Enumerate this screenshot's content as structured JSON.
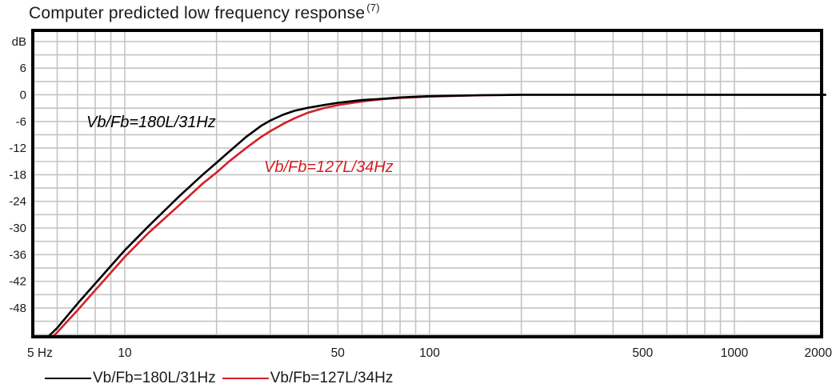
{
  "chart_data": {
    "type": "line",
    "title": "Computer predicted low frequency response",
    "title_superscript": "(7)",
    "xlabel": "Hz",
    "ylabel": "dB",
    "xscale": "log",
    "xlim": [
      5,
      2000
    ],
    "ylim": [
      -54.5,
      14.5
    ],
    "grid": true,
    "x_tick_labels": [
      "5 Hz",
      "10",
      "50",
      "100",
      "500",
      "1000",
      "2000"
    ],
    "x_tick_values": [
      5,
      10,
      50,
      100,
      500,
      1000,
      2000
    ],
    "y_tick_labels": [
      "dB",
      "6",
      "0",
      "-6",
      "-12",
      "-18",
      "-24",
      "-30",
      "-36",
      "-42",
      "-48"
    ],
    "y_tick_values": [
      12,
      6,
      0,
      -6,
      -12,
      -18,
      -24,
      -30,
      -36,
      -42,
      -48
    ],
    "legend_position": "bottom",
    "series": [
      {
        "name": "Vb/Fb=180L/31Hz",
        "color": "#000000",
        "x": [
          5.6,
          6,
          7,
          8,
          10,
          12,
          15,
          18,
          20,
          22,
          25,
          28,
          30,
          33,
          36,
          40,
          45,
          50,
          60,
          70,
          80,
          100,
          150,
          200,
          500,
          1000,
          2000
        ],
        "y": [
          -54.5,
          -52.5,
          -47,
          -42.5,
          -35,
          -29.5,
          -23,
          -18,
          -15.3,
          -12.8,
          -9.5,
          -7,
          -5.8,
          -4.5,
          -3.6,
          -2.9,
          -2.3,
          -1.8,
          -1.2,
          -0.9,
          -0.6,
          -0.3,
          -0.1,
          0,
          0,
          0,
          0
        ]
      },
      {
        "name": "Vb/Fb=127L/34Hz",
        "color": "#d42027",
        "x": [
          5.8,
          6,
          7,
          8,
          10,
          12,
          15,
          18,
          20,
          22,
          25,
          28,
          30,
          33,
          36,
          40,
          45,
          50,
          60,
          70,
          80,
          100,
          150,
          200,
          500,
          1000,
          2000
        ],
        "y": [
          -54.5,
          -53.5,
          -48.5,
          -44,
          -36.5,
          -31,
          -25,
          -20,
          -17.5,
          -15,
          -12,
          -9.5,
          -8.2,
          -6.6,
          -5.3,
          -4,
          -3,
          -2.3,
          -1.5,
          -1,
          -0.7,
          -0.4,
          -0.1,
          0,
          0,
          0,
          0
        ]
      }
    ],
    "annotations": [
      {
        "text": "Vb/Fb=180L/31Hz",
        "color": "#000000"
      },
      {
        "text": "Vb/Fb=127L/34Hz",
        "color": "#d42027"
      }
    ]
  },
  "legend": {
    "items": [
      {
        "label": "Vb/Fb=180L/31Hz",
        "color": "#000000"
      },
      {
        "label": "Vb/Fb=127L/34Hz",
        "color": "#d42027"
      }
    ]
  }
}
